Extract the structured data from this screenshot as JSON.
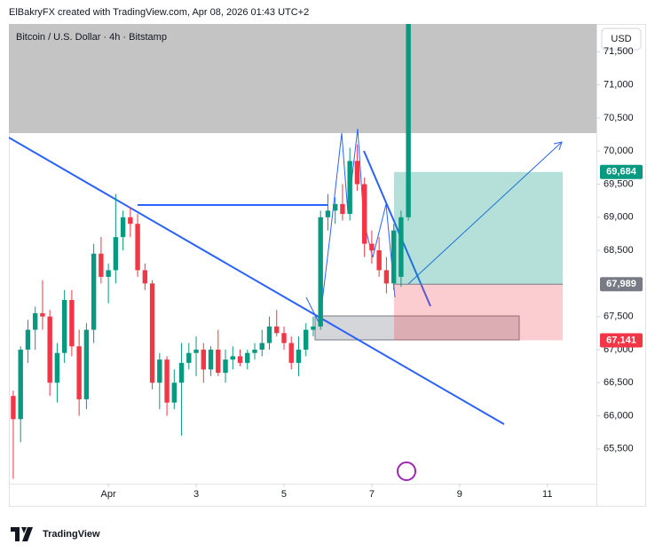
{
  "header": {
    "credit": "ElBakryFX created with TradingView.com, Apr 08, 2026 01:43 UTC+2"
  },
  "chart_data": {
    "type": "candlestick",
    "legend": "Bitcoin / U.S. Dollar · 4h · Bitstamp",
    "currency": "USD",
    "up_color": "#089981",
    "down_color": "#f23645",
    "open": [
      66300,
      65950,
      67000,
      67300,
      67550,
      67500,
      66500,
      66950,
      67750,
      67050,
      66250,
      67300,
      68450,
      68100,
      68200,
      68700,
      69000,
      68900,
      68200,
      68000,
      66500,
      66850,
      66200,
      66500,
      66800,
      66950,
      67000,
      66700,
      67000,
      66650,
      66850,
      66900,
      66800,
      66950,
      67000,
      67100,
      67350,
      67250,
      67100,
      66800,
      67000,
      67300,
      67350,
      69000,
      69100,
      69200,
      69050,
      69850,
      69500,
      68600,
      68500,
      68200,
      68000,
      68100,
      69000
    ],
    "high": [
      66380,
      67050,
      67450,
      67650,
      68050,
      67600,
      67100,
      67900,
      67900,
      67300,
      67400,
      68600,
      68700,
      68300,
      69350,
      69100,
      69150,
      69050,
      68300,
      68050,
      66950,
      66900,
      66700,
      67100,
      67100,
      67200,
      67100,
      67050,
      67300,
      67000,
      67050,
      67000,
      67000,
      67100,
      67300,
      67500,
      67600,
      67350,
      67200,
      67200,
      67400,
      67500,
      69100,
      69350,
      69300,
      69500,
      70050,
      70100,
      69600,
      68800,
      68700,
      68400,
      68900,
      69100,
      72000
    ],
    "low": [
      65050,
      65600,
      66800,
      67000,
      67300,
      66300,
      66200,
      66800,
      66900,
      66000,
      66100,
      67100,
      68000,
      67700,
      68000,
      68500,
      68700,
      68100,
      67900,
      66400,
      66100,
      66000,
      66100,
      65700,
      66700,
      66600,
      66500,
      66600,
      66600,
      66500,
      66700,
      66750,
      66700,
      66850,
      66900,
      67000,
      67200,
      67000,
      66700,
      66600,
      66900,
      67200,
      67300,
      68800,
      68900,
      68950,
      68950,
      69400,
      68400,
      68300,
      68100,
      67850,
      67900,
      67950,
      68950
    ],
    "close": [
      65950,
      67000,
      67300,
      67550,
      67500,
      66500,
      66950,
      67750,
      67050,
      66250,
      67300,
      68450,
      68100,
      68200,
      68700,
      69000,
      68900,
      68200,
      68000,
      66500,
      66850,
      66200,
      66500,
      66800,
      66950,
      67000,
      66700,
      67000,
      66650,
      66850,
      66900,
      66800,
      66950,
      67000,
      67100,
      67350,
      67250,
      67100,
      66800,
      67000,
      67300,
      67350,
      69000,
      69100,
      69200,
      69050,
      69850,
      69500,
      68600,
      68500,
      68200,
      68000,
      68800,
      69000,
      71950
    ],
    "xlim": [
      -0.6,
      79.7
    ],
    "xticks": [
      {
        "value": 13,
        "label": "Apr"
      },
      {
        "value": 25,
        "label": "3"
      },
      {
        "value": 37,
        "label": "5"
      },
      {
        "value": 49,
        "label": "7"
      },
      {
        "value": 61,
        "label": "9"
      },
      {
        "value": 73,
        "label": "11"
      }
    ],
    "ylim": [
      64680,
      71920
    ],
    "yticks": [
      {
        "value": 65500,
        "label": "65,500"
      },
      {
        "value": 66000,
        "label": "66,000"
      },
      {
        "value": 66500,
        "label": "66,500"
      },
      {
        "value": 67000,
        "label": "67,000"
      },
      {
        "value": 67500,
        "label": "67,500"
      },
      {
        "value": 68500,
        "label": "68,500"
      },
      {
        "value": 69000,
        "label": "69,000"
      },
      {
        "value": 69500,
        "label": "69,500"
      },
      {
        "value": 70000,
        "label": "70,000"
      },
      {
        "value": 70500,
        "label": "70,500"
      },
      {
        "value": 71000,
        "label": "71,000"
      },
      {
        "value": 71500,
        "label": "71,500"
      }
    ],
    "levels": [
      {
        "value": 69684,
        "label": "69,684",
        "color": "#089981"
      },
      {
        "value": 67989,
        "label": "67,989",
        "color": "#787b86"
      },
      {
        "value": 67141,
        "label": "67,141",
        "color": "#f23645"
      }
    ]
  },
  "footer": {
    "brand": "TradingView"
  }
}
